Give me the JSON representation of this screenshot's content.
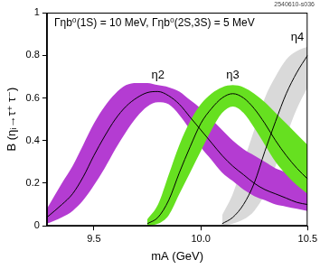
{
  "chart_data": {
    "type": "line",
    "title": "Γηb⁰(1S) = 10 MeV, Γηb⁰(2S,3S) = 5 MeV",
    "x_label": "mA (GeV)",
    "y_label": "B (ηᵢ→τ⁺ τ⁻)",
    "annotations": [
      "2540610-s036"
    ],
    "x": [
      9.28,
      9.35,
      9.4,
      9.45,
      9.5,
      9.55,
      9.6,
      9.65,
      9.7,
      9.75,
      9.8,
      9.85,
      9.9,
      9.95,
      10.0,
      10.05,
      10.1,
      10.15,
      10.2,
      10.25,
      10.3,
      10.35,
      10.4,
      10.45,
      10.5
    ],
    "series": [
      {
        "name": "η2",
        "color": "#b43cd2",
        "values": [
          0.04,
          0.1,
          0.15,
          0.23,
          0.33,
          0.42,
          0.5,
          0.56,
          0.6,
          0.625,
          0.63,
          0.61,
          0.57,
          0.51,
          0.45,
          0.39,
          0.33,
          0.28,
          0.24,
          0.2,
          0.17,
          0.15,
          0.13,
          0.11,
          0.1
        ],
        "upper": [
          0.08,
          0.2,
          0.28,
          0.38,
          0.48,
          0.56,
          0.62,
          0.66,
          0.67,
          0.67,
          0.66,
          0.65,
          0.63,
          0.59,
          0.55,
          0.5,
          0.45,
          0.4,
          0.36,
          0.33,
          0.3,
          0.27,
          0.25,
          0.22,
          0.2
        ],
        "lower": [
          0.01,
          0.04,
          0.07,
          0.12,
          0.19,
          0.27,
          0.36,
          0.44,
          0.51,
          0.56,
          0.58,
          0.57,
          0.52,
          0.45,
          0.37,
          0.31,
          0.25,
          0.21,
          0.17,
          0.14,
          0.12,
          0.1,
          0.09,
          0.08,
          0.07
        ]
      },
      {
        "name": "η3",
        "color": "#66e020",
        "values": [
          null,
          null,
          null,
          null,
          null,
          null,
          null,
          null,
          null,
          0.01,
          0.04,
          0.12,
          0.25,
          0.37,
          0.48,
          0.55,
          0.6,
          0.62,
          0.6,
          0.55,
          0.48,
          0.4,
          0.33,
          0.27,
          0.22
        ],
        "upper": [
          null,
          null,
          null,
          null,
          null,
          null,
          null,
          null,
          null,
          0.03,
          0.1,
          0.24,
          0.38,
          0.49,
          0.57,
          0.62,
          0.65,
          0.66,
          0.65,
          0.62,
          0.58,
          0.53,
          0.48,
          0.43,
          0.38
        ],
        "lower": [
          null,
          null,
          null,
          null,
          null,
          null,
          null,
          null,
          null,
          0,
          0.01,
          0.05,
          0.15,
          0.25,
          0.35,
          0.45,
          0.53,
          0.56,
          0.53,
          0.46,
          0.38,
          0.3,
          0.24,
          0.19,
          0.15
        ]
      },
      {
        "name": "η4",
        "color": "#d9d9d9",
        "values": [
          null,
          null,
          null,
          null,
          null,
          null,
          null,
          null,
          null,
          null,
          null,
          null,
          null,
          null,
          null,
          null,
          0.01,
          0.04,
          0.1,
          0.2,
          0.35,
          0.49,
          0.62,
          0.72,
          0.8
        ],
        "upper": [
          null,
          null,
          null,
          null,
          null,
          null,
          null,
          null,
          null,
          null,
          null,
          null,
          null,
          null,
          null,
          null,
          0.05,
          0.15,
          0.3,
          0.45,
          0.6,
          0.7,
          0.78,
          0.82,
          0.84
        ],
        "lower": [
          null,
          null,
          null,
          null,
          null,
          null,
          null,
          null,
          null,
          null,
          null,
          null,
          null,
          null,
          null,
          null,
          0,
          0.01,
          0.03,
          0.07,
          0.15,
          0.28,
          0.42,
          0.55,
          0.65
        ]
      }
    ],
    "xlim": [
      9.28,
      10.5
    ],
    "xticks": [
      9.5,
      {
        "value": 10,
        "label": "10.0"
      },
      10.5
    ],
    "ylim": [
      0,
      1
    ],
    "yticks": [
      0,
      0.2,
      0.4,
      0.6,
      0.8,
      1
    ],
    "grid": false
  }
}
